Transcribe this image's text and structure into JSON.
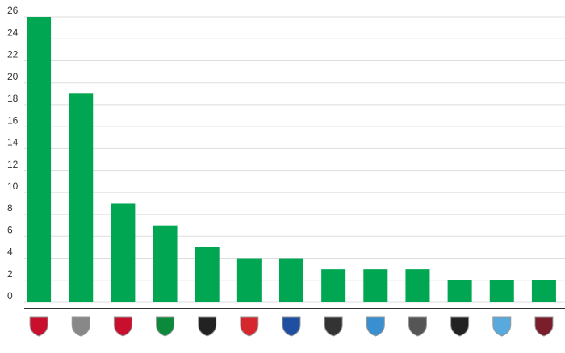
{
  "chart_data": {
    "type": "bar",
    "categories": [
      null,
      null,
      null,
      null,
      null,
      null,
      null,
      null,
      null,
      null,
      null,
      null,
      null
    ],
    "values": [
      26,
      19,
      9,
      7,
      5,
      4,
      4,
      3,
      3,
      3,
      2,
      2,
      2
    ],
    "color": "#00a651",
    "ylim": [
      0,
      26
    ],
    "yticks": [
      0,
      2,
      4,
      6,
      8,
      10,
      12,
      14,
      16,
      18,
      20,
      22,
      24,
      26
    ],
    "grid": true
  }
}
